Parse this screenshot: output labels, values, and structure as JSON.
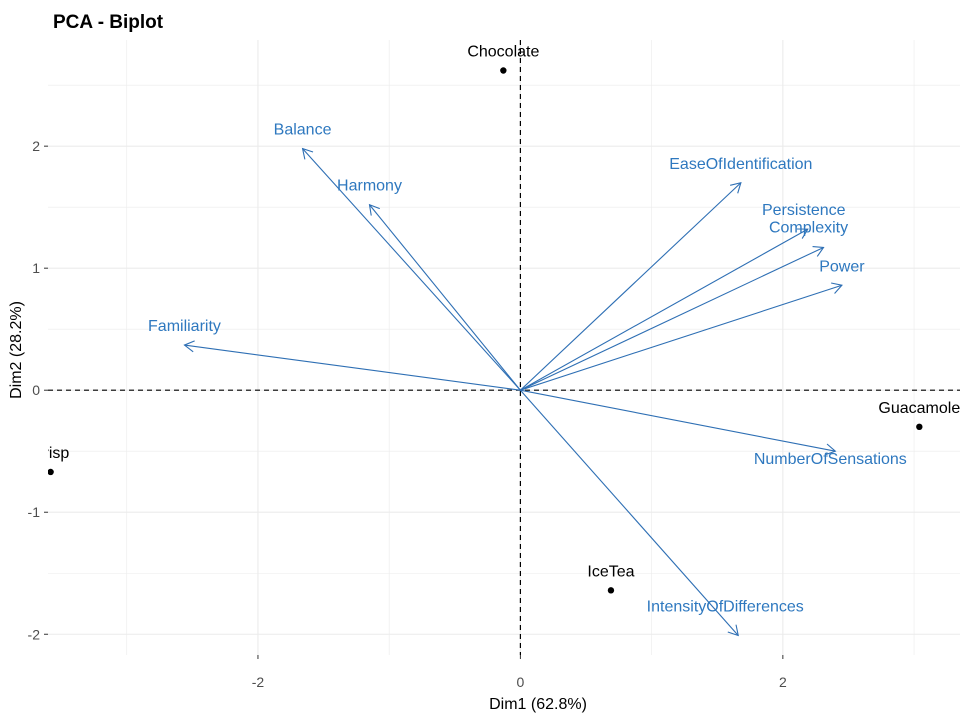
{
  "chart_data": {
    "type": "scatter",
    "title": "PCA - Biplot",
    "xlabel": "Dim1 (62.8%)",
    "ylabel": "Dim2 (28.2%)",
    "xlim": [
      -3.6,
      3.35
    ],
    "ylim": [
      -2.17,
      2.87
    ],
    "x_ticks": [
      -2,
      0,
      2
    ],
    "y_ticks": [
      -2,
      -1,
      0,
      1,
      2
    ],
    "grid": true,
    "colors": {
      "grid": "#ebebeb",
      "individuals": "#000000",
      "variables": "#2e6fb4",
      "variable_labels": "#2e78bf"
    },
    "individuals": [
      {
        "name": "Chocolate",
        "x": -0.13,
        "y": 2.62
      },
      {
        "name": "Crisp",
        "x": -3.58,
        "y": -0.67
      },
      {
        "name": "Guacamole",
        "x": 3.04,
        "y": -0.3
      },
      {
        "name": "IceTea",
        "x": 0.69,
        "y": -1.64
      }
    ],
    "variables": [
      {
        "name": "Balance",
        "x": -1.66,
        "y": 1.98
      },
      {
        "name": "Harmony",
        "x": -1.15,
        "y": 1.52
      },
      {
        "name": "Familiarity",
        "x": -2.56,
        "y": 0.37
      },
      {
        "name": "EaseOfIdentification",
        "x": 1.68,
        "y": 1.7
      },
      {
        "name": "Persistence",
        "x": 2.19,
        "y": 1.32
      },
      {
        "name": "Complexity",
        "x": 2.31,
        "y": 1.17
      },
      {
        "name": "Power",
        "x": 2.45,
        "y": 0.86
      },
      {
        "name": "NumberOfSensations",
        "x": 2.4,
        "y": -0.5
      },
      {
        "name": "IntensityOfDifferences",
        "x": 1.66,
        "y": -2.01
      }
    ]
  }
}
